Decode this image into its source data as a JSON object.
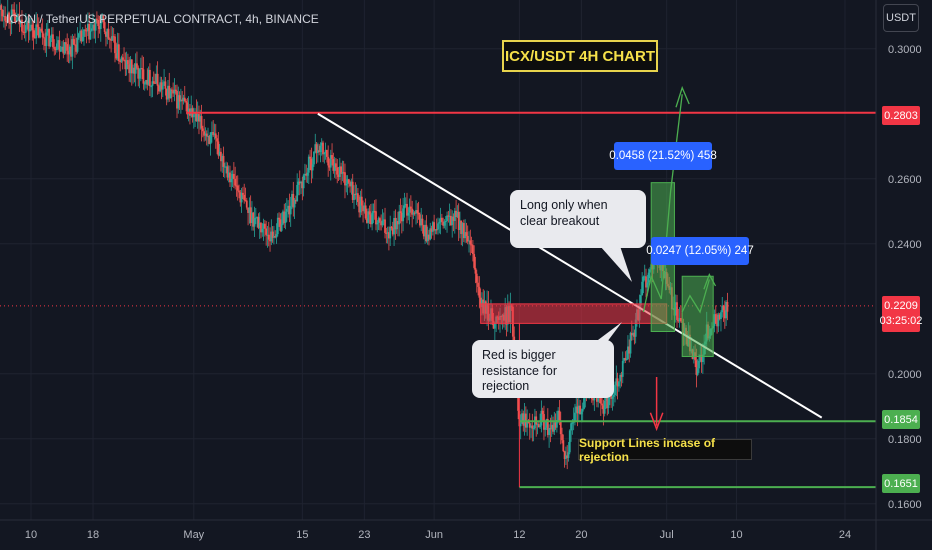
{
  "header": {
    "title": "ICON / TetherUS PERPETUAL CONTRACT, 4h, BINANCE",
    "currency": "USDT"
  },
  "headline": "ICX/USDT 4H CHART",
  "annotations": {
    "long_note": "Long only when clear breakout",
    "red_note": "Red is bigger resistance for rejection",
    "measure_1": "0.0458 (21.52%) 458",
    "measure_2": "0.0247 (12.05%) 247",
    "support_note": "Support Lines incase of rejection"
  },
  "price_tags": {
    "resistance": "0.2803",
    "current_price": "0.2209",
    "countdown": "03:25:02",
    "support_1": "0.1854",
    "support_2": "0.1651"
  },
  "colors": {
    "background": "#131722",
    "bull": "#26a69a",
    "bear": "#ef5350",
    "resistance": "#f23645",
    "support": "#4caf50",
    "measure": "#2962ff",
    "headline_text": "#f5e04a"
  },
  "chart_data": {
    "type": "candlestick",
    "title": "",
    "y_axis": {
      "min": 0.155,
      "max": 0.315,
      "ticks": [
        "0.3000",
        "0.2600",
        "0.2400",
        "0.2000",
        "0.1800",
        "0.1600"
      ],
      "tick_values": [
        0.3,
        0.26,
        0.24,
        0.2,
        0.18,
        0.16
      ]
    },
    "x_axis": {
      "tick_labels": [
        "10",
        "18",
        "May",
        "15",
        "23",
        "Jun",
        "12",
        "20",
        "Jul",
        "10",
        "24"
      ],
      "tick_days": [
        0,
        8,
        21,
        35,
        43,
        52,
        63,
        71,
        82,
        91,
        105
      ],
      "day_range": [
        -4,
        109
      ]
    },
    "price_path": [
      [
        -4,
        0.312
      ],
      [
        0,
        0.306
      ],
      [
        5,
        0.3
      ],
      [
        9,
        0.308
      ],
      [
        12,
        0.295
      ],
      [
        16,
        0.29
      ],
      [
        20,
        0.282
      ],
      [
        24,
        0.27
      ],
      [
        28,
        0.25
      ],
      [
        31,
        0.242
      ],
      [
        34,
        0.254
      ],
      [
        37,
        0.27
      ],
      [
        40,
        0.262
      ],
      [
        43,
        0.25
      ],
      [
        46,
        0.244
      ],
      [
        49,
        0.252
      ],
      [
        51,
        0.243
      ],
      [
        53,
        0.246
      ],
      [
        55,
        0.248
      ],
      [
        57,
        0.236
      ],
      [
        58,
        0.221
      ],
      [
        60,
        0.216
      ],
      [
        62,
        0.219
      ],
      [
        63,
        0.186
      ],
      [
        66,
        0.186
      ],
      [
        67,
        0.181
      ],
      [
        68,
        0.187
      ],
      [
        69,
        0.174
      ],
      [
        70,
        0.186
      ],
      [
        72,
        0.195
      ],
      [
        74,
        0.19
      ],
      [
        76,
        0.2
      ],
      [
        78,
        0.215
      ],
      [
        79,
        0.228
      ],
      [
        81,
        0.236
      ],
      [
        83,
        0.22
      ],
      [
        85,
        0.208
      ],
      [
        86,
        0.2
      ],
      [
        87,
        0.212
      ],
      [
        89,
        0.218
      ],
      [
        90,
        0.2209
      ]
    ],
    "horizontal_levels": [
      {
        "price": 0.2803,
        "label": "0.2803",
        "color": "red"
      },
      {
        "price": 0.1854,
        "label": "0.1854",
        "color": "green"
      },
      {
        "price": 0.1651,
        "label": "0.1651",
        "color": "green"
      }
    ],
    "current_price": 0.2209,
    "trendline": [
      [
        37,
        0.28
      ],
      [
        102,
        0.1865
      ]
    ],
    "resistance_zone": {
      "price_low": 0.2155,
      "price_high": 0.2215
    },
    "measure_targets": [
      {
        "label": "0.0458 (21.52%) 458",
        "from": 0.213,
        "to": 0.2588
      },
      {
        "label": "0.0247 (12.05%) 247",
        "from": 0.2053,
        "to": 0.23
      }
    ]
  }
}
